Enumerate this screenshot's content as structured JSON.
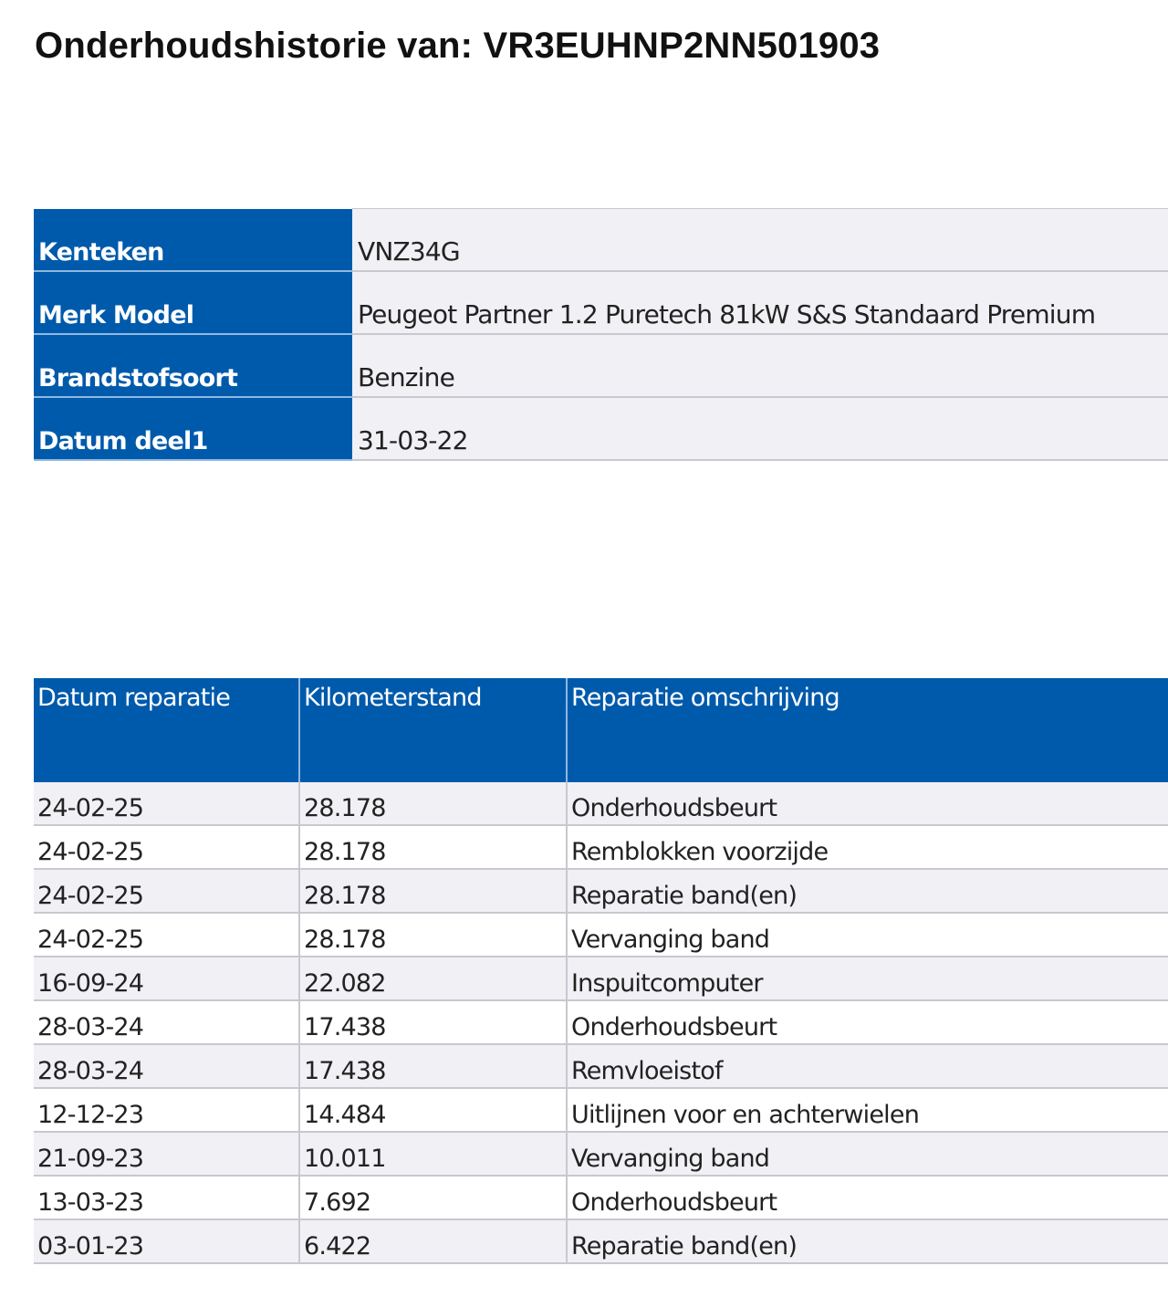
{
  "title": "Onderhoudshistorie van: VR3EUHNP2NN501903",
  "vehicle": [
    {
      "label": "Kenteken",
      "value": "VNZ34G"
    },
    {
      "label": "Merk Model",
      "value": "Peugeot Partner 1.2 Puretech 81kW S&S Standaard Premium"
    },
    {
      "label": "Brandstofsoort",
      "value": "Benzine"
    },
    {
      "label": "Datum deel1",
      "value": "31-03-22"
    }
  ],
  "history": {
    "columns": [
      "Datum reparatie",
      "Kilometerstand",
      "Reparatie omschrijving"
    ],
    "rows": [
      [
        "24-02-25",
        "28.178",
        "Onderhoudsbeurt"
      ],
      [
        "24-02-25",
        "28.178",
        "Remblokken voorzijde"
      ],
      [
        "24-02-25",
        "28.178",
        "Reparatie band(en)"
      ],
      [
        "24-02-25",
        "28.178",
        "Vervanging band"
      ],
      [
        "16-09-24",
        "22.082",
        "Inspuitcomputer"
      ],
      [
        "28-03-24",
        "17.438",
        "Onderhoudsbeurt"
      ],
      [
        "28-03-24",
        "17.438",
        "Remvloeistof"
      ],
      [
        "12-12-23",
        "14.484",
        "Uitlijnen voor en achterwielen"
      ],
      [
        "21-09-23",
        "10.011",
        "Vervanging band"
      ],
      [
        "13-03-23",
        "7.692",
        "Onderhoudsbeurt"
      ],
      [
        "03-01-23",
        "6.422",
        "Reparatie band(en)"
      ]
    ]
  },
  "colors": {
    "header_blue": "#005aab",
    "row_alt": "#f0f0f5"
  }
}
